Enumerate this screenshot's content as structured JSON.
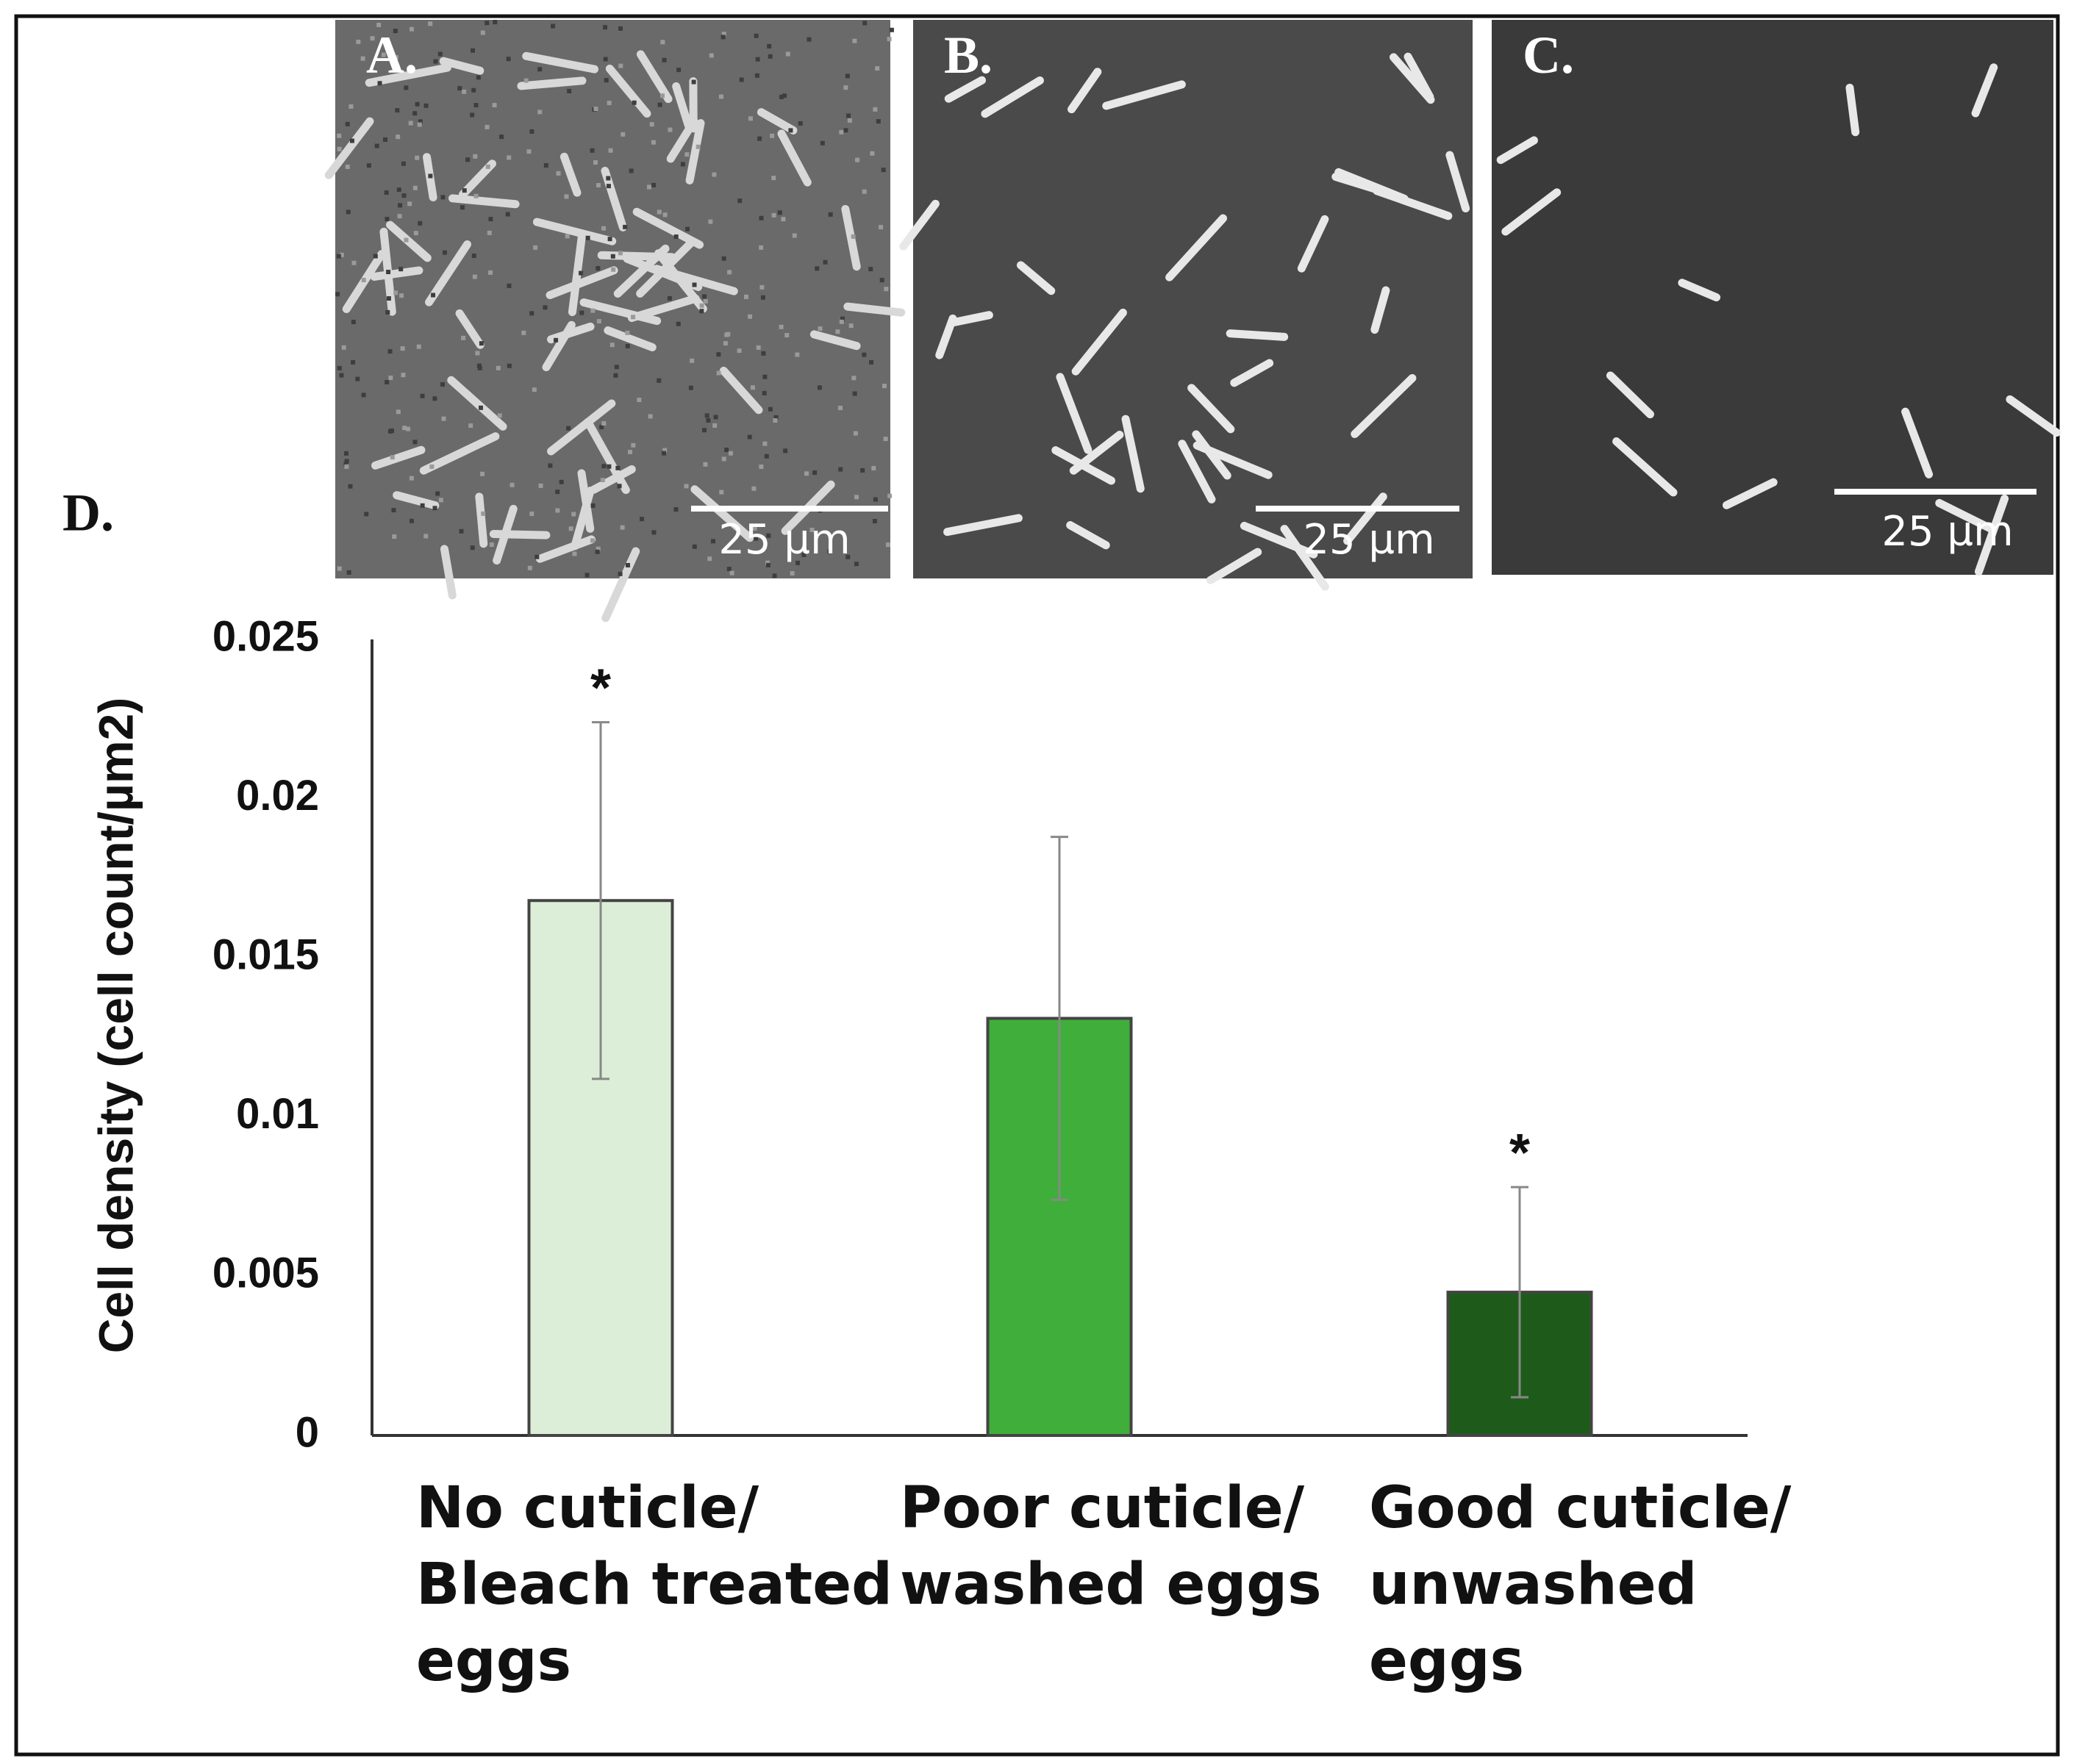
{
  "chart_data": {
    "type": "bar",
    "panel_label": "D.",
    "y_label": "Cell density (cell count/µm2)",
    "categories": [
      [
        "No cuticle/",
        "Bleach treated",
        "eggs"
      ],
      [
        "Poor cuticle/",
        "washed eggs"
      ],
      [
        "Good cuticle/",
        "unwashed",
        "eggs"
      ]
    ],
    "values": [
      0.0168,
      0.0131,
      0.0045
    ],
    "errors": [
      0.0056,
      0.0057,
      0.0033
    ],
    "significance_marks": [
      "*",
      null,
      "*"
    ],
    "colors": [
      "#ddeed8",
      "#3fae3a",
      "#1e5b1a"
    ],
    "ylim": [
      0,
      0.025
    ],
    "yticks": [
      0,
      0.005,
      0.01,
      0.015,
      0.02,
      0.025
    ],
    "grid": false
  },
  "panels": [
    {
      "label": "A.",
      "scale_bar": "25 µm"
    },
    {
      "label": "B.",
      "scale_bar": "25 µm"
    },
    {
      "label": "C.",
      "scale_bar": "25 µm"
    }
  ]
}
